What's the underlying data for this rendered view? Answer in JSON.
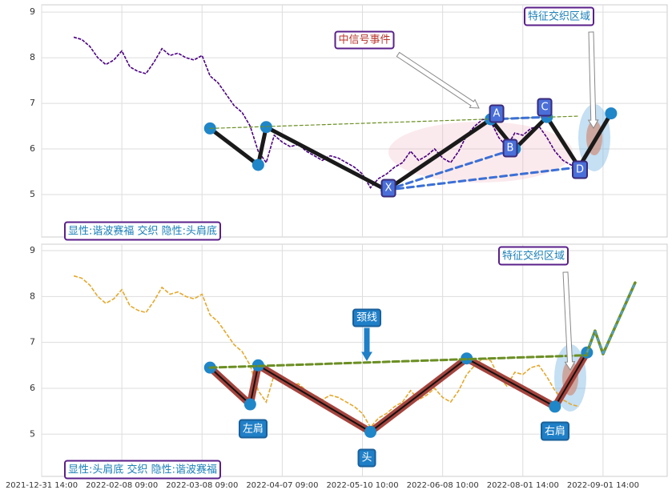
{
  "chart_data": [
    {
      "type": "line",
      "ylim": [
        4.07,
        9.16
      ],
      "yticks": [
        5,
        6,
        7,
        8,
        9
      ],
      "grid": true,
      "annotations": [
        "中信号事件",
        "特征交织区域",
        "显性:谐波赛福 交织 隐性:头肩底",
        "X",
        "A",
        "B",
        "C",
        "D"
      ],
      "series": [
        {
          "color": "#4b0082",
          "values": [
            null,
            null,
            null,
            null,
            8.45,
            8.4,
            8.25,
            8.0,
            7.85,
            7.95,
            8.15,
            7.8,
            7.7,
            7.65,
            7.9,
            8.2,
            8.05,
            8.1,
            8.0,
            7.95,
            8.05,
            7.6,
            7.45,
            7.2,
            6.95,
            6.8,
            6.5,
            5.95,
            5.7,
            6.3,
            6.15,
            6.05,
            6.1,
            5.95,
            5.85,
            5.75,
            5.85,
            5.8,
            5.7,
            5.6,
            5.45,
            5.15,
            5.35,
            5.45,
            5.6,
            5.7,
            5.95,
            5.75,
            5.85,
            6.0,
            5.8,
            5.7,
            5.95,
            6.3,
            6.5,
            6.65,
            6.6,
            6.25,
            6.05,
            6.35,
            6.3,
            6.45,
            6.5,
            6.25,
            5.95,
            5.75,
            5.65,
            5.6,
            null,
            null,
            null,
            null,
            null,
            null,
            null,
            null,
            null,
            null,
            null
          ]
        },
        {
          "color": "#1a1a1a",
          "values": [
            null,
            null,
            null,
            null,
            null,
            null,
            null,
            null,
            null,
            null,
            null,
            null,
            null,
            null,
            null,
            null,
            null,
            null,
            null,
            null,
            null,
            6.45,
            null,
            null,
            null,
            null,
            null,
            5.65,
            6.48,
            null,
            null,
            null,
            null,
            null,
            null,
            null,
            null,
            null,
            null,
            null,
            null,
            null,
            null,
            5.1,
            null,
            null,
            null,
            null,
            null,
            null,
            null,
            null,
            null,
            null,
            null,
            null,
            6.65,
            null,
            null,
            6.0,
            null,
            null,
            null,
            6.7,
            null,
            null,
            null,
            5.6,
            null,
            null,
            null,
            6.78,
            null,
            null,
            null,
            null,
            null,
            null,
            null
          ]
        },
        {
          "color": "#6b8e23",
          "values": [
            null,
            null,
            null,
            null,
            null,
            null,
            null,
            null,
            null,
            null,
            null,
            null,
            null,
            null,
            null,
            null,
            null,
            null,
            null,
            null,
            null,
            6.45,
            null,
            null,
            null,
            null,
            null,
            null,
            null,
            null,
            null,
            null,
            null,
            null,
            null,
            null,
            null,
            null,
            null,
            null,
            null,
            null,
            null,
            null,
            null,
            null,
            null,
            null,
            null,
            null,
            null,
            null,
            null,
            null,
            null,
            null,
            null,
            null,
            null,
            null,
            null,
            null,
            null,
            null,
            null,
            null,
            null,
            6.72,
            null,
            null,
            null,
            null,
            null,
            null,
            null,
            null,
            null,
            null,
            null
          ]
        },
        {
          "color": "#3b6fd6",
          "values": [
            null,
            null,
            null,
            null,
            null,
            null,
            null,
            null,
            null,
            null,
            null,
            null,
            null,
            null,
            null,
            null,
            null,
            null,
            null,
            null,
            null,
            null,
            null,
            null,
            null,
            null,
            null,
            null,
            null,
            null,
            null,
            null,
            null,
            null,
            null,
            null,
            null,
            null,
            null,
            null,
            null,
            null,
            null,
            5.1,
            null,
            null,
            null,
            null,
            null,
            null,
            null,
            null,
            null,
            null,
            null,
            null,
            null,
            null,
            null,
            6.0,
            null,
            null,
            null,
            null,
            null,
            null,
            null,
            null,
            null,
            null,
            null,
            null,
            null,
            null,
            null,
            null,
            null,
            null,
            null
          ]
        },
        {
          "color": "#3b6fd6",
          "values": [
            null,
            null,
            null,
            null,
            null,
            null,
            null,
            null,
            null,
            null,
            null,
            null,
            null,
            null,
            null,
            null,
            null,
            null,
            null,
            null,
            null,
            null,
            null,
            null,
            null,
            null,
            null,
            null,
            null,
            null,
            null,
            null,
            null,
            null,
            null,
            null,
            null,
            null,
            null,
            null,
            null,
            null,
            null,
            5.1,
            null,
            null,
            null,
            null,
            null,
            null,
            null,
            null,
            null,
            null,
            null,
            null,
            null,
            null,
            null,
            null,
            null,
            null,
            null,
            null,
            null,
            null,
            null,
            5.6,
            null,
            null,
            null,
            null,
            null,
            null,
            null,
            null,
            null,
            null,
            null
          ]
        },
        {
          "color": "#3b6fd6",
          "values": [
            null,
            null,
            null,
            null,
            null,
            null,
            null,
            null,
            null,
            null,
            null,
            null,
            null,
            null,
            null,
            null,
            null,
            null,
            null,
            null,
            null,
            null,
            null,
            null,
            null,
            null,
            null,
            null,
            null,
            null,
            null,
            null,
            null,
            null,
            null,
            null,
            null,
            null,
            null,
            null,
            null,
            null,
            null,
            null,
            null,
            null,
            null,
            null,
            null,
            null,
            null,
            null,
            null,
            null,
            null,
            null,
            6.65,
            null,
            null,
            null,
            null,
            null,
            null,
            6.7,
            null,
            null,
            null,
            null,
            null,
            null,
            null,
            null,
            null,
            null,
            null,
            null,
            null,
            null,
            null
          ]
        }
      ]
    },
    {
      "type": "line",
      "ylim": [
        4.08,
        9.14
      ],
      "yticks": [
        5,
        6,
        7,
        8,
        9
      ],
      "grid": true,
      "categories": [
        "2021-12-31 14:00",
        null,
        null,
        null,
        null,
        null,
        null,
        null,
        null,
        null,
        "2022-02-08 09:00",
        null,
        null,
        null,
        null,
        null,
        null,
        null,
        null,
        null,
        "2022-03-08 09:00",
        null,
        null,
        null,
        null,
        null,
        null,
        null,
        null,
        null,
        "2022-04-07 09:00",
        null,
        null,
        null,
        null,
        null,
        null,
        null,
        null,
        null,
        "2022-05-10 10:00",
        null,
        null,
        null,
        null,
        null,
        null,
        null,
        null,
        null,
        "2022-06-08 10:00",
        null,
        null,
        null,
        null,
        null,
        null,
        null,
        null,
        null,
        "2022-08-01 14:00",
        null,
        null,
        null,
        null,
        null,
        null,
        null,
        null,
        null,
        "2022-09-01 14:00",
        null,
        null,
        null,
        null,
        null,
        null,
        null,
        null
      ],
      "annotations": [
        "颈线",
        "左肩",
        "头",
        "右肩",
        "特征交织区域",
        "显性:头肩底 交织 隐性:谐波赛福"
      ],
      "series": [
        {
          "color": "#e6a82a",
          "values": [
            null,
            null,
            null,
            null,
            8.45,
            8.4,
            8.25,
            8.0,
            7.85,
            7.95,
            8.15,
            7.8,
            7.7,
            7.65,
            7.9,
            8.2,
            8.05,
            8.1,
            8.0,
            7.95,
            8.05,
            7.6,
            7.45,
            7.2,
            6.95,
            6.8,
            6.5,
            5.95,
            5.7,
            6.3,
            6.15,
            6.05,
            6.1,
            5.95,
            5.85,
            5.75,
            5.85,
            5.8,
            5.7,
            5.6,
            5.45,
            5.15,
            5.35,
            5.45,
            5.6,
            5.7,
            5.95,
            5.75,
            5.85,
            6.0,
            5.8,
            5.7,
            5.95,
            6.3,
            6.5,
            6.65,
            6.6,
            6.25,
            6.05,
            6.35,
            6.3,
            6.45,
            6.5,
            6.25,
            5.95,
            5.75,
            5.65,
            5.6,
            null,
            null,
            null,
            null,
            null,
            null,
            null,
            null,
            null,
            null,
            null
          ]
        },
        {
          "color": "#a5443d",
          "values": [
            null,
            null,
            null,
            null,
            null,
            null,
            null,
            null,
            null,
            null,
            null,
            null,
            null,
            null,
            null,
            null,
            null,
            null,
            null,
            null,
            null,
            6.45,
            null,
            null,
            null,
            null,
            5.65,
            6.5,
            null,
            null,
            null,
            null,
            null,
            null,
            null,
            null,
            null,
            null,
            null,
            null,
            null,
            5.05,
            null,
            null,
            null,
            null,
            null,
            null,
            null,
            null,
            null,
            null,
            null,
            6.65,
            null,
            null,
            null,
            null,
            null,
            null,
            null,
            null,
            null,
            null,
            5.6,
            null,
            null,
            null,
            6.78,
            null,
            null,
            null,
            null,
            null,
            null,
            null,
            null,
            null,
            null
          ]
        },
        {
          "color": "#6b8e23",
          "values": [
            null,
            null,
            null,
            null,
            null,
            null,
            null,
            null,
            null,
            null,
            null,
            null,
            null,
            null,
            null,
            null,
            null,
            null,
            null,
            null,
            null,
            6.45,
            null,
            null,
            null,
            null,
            null,
            null,
            null,
            null,
            null,
            null,
            null,
            null,
            null,
            null,
            null,
            null,
            null,
            null,
            null,
            null,
            null,
            null,
            null,
            null,
            null,
            null,
            null,
            null,
            null,
            null,
            null,
            null,
            null,
            null,
            null,
            null,
            null,
            null,
            null,
            null,
            null,
            null,
            null,
            null,
            null,
            null,
            6.72,
            null,
            null,
            null,
            null,
            null,
            null,
            null,
            null,
            null,
            null
          ]
        },
        {
          "color": "#6b8e23",
          "values": [
            null,
            null,
            null,
            null,
            null,
            null,
            null,
            null,
            null,
            null,
            null,
            null,
            null,
            null,
            null,
            null,
            null,
            null,
            null,
            null,
            null,
            null,
            null,
            null,
            null,
            null,
            null,
            null,
            null,
            null,
            null,
            null,
            null,
            null,
            null,
            null,
            null,
            null,
            null,
            null,
            null,
            null,
            null,
            null,
            null,
            null,
            null,
            null,
            null,
            null,
            null,
            null,
            null,
            null,
            null,
            null,
            null,
            null,
            null,
            null,
            null,
            null,
            null,
            null,
            null,
            null,
            null,
            null,
            6.78,
            7.25,
            6.75,
            null,
            null,
            null,
            8.3,
            null,
            null,
            null,
            null
          ]
        }
      ]
    }
  ]
}
